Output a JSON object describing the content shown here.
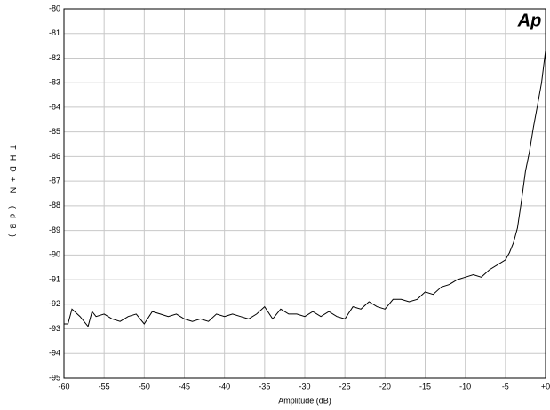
{
  "chart_data": {
    "type": "line",
    "xlabel": "Amplitude (dB)",
    "ylabel": "THD+N (dB)",
    "logo": "Ap",
    "x": [
      -60,
      -59.5,
      -59,
      -58,
      -57,
      -56.5,
      -56,
      -55,
      -54,
      -53,
      -52,
      -51,
      -50,
      -49,
      -48,
      -47,
      -46,
      -45,
      -44,
      -43,
      -42,
      -41,
      -40,
      -39,
      -38,
      -37,
      -36,
      -35,
      -34,
      -33,
      -32,
      -31,
      -30,
      -29,
      -28,
      -27,
      -26,
      -25,
      -24,
      -23,
      -22,
      -21,
      -20,
      -19,
      -18,
      -17,
      -16,
      -15,
      -14,
      -13,
      -12,
      -11,
      -10,
      -9,
      -8,
      -7,
      -6,
      -5,
      -4.5,
      -4,
      -3.5,
      -3,
      -2.5,
      -2,
      -1.5,
      -1,
      -0.5,
      0
    ],
    "series": [
      {
        "name": "THD+N",
        "color": "#000000",
        "values": [
          -92.8,
          -92.8,
          -92.2,
          -92.5,
          -92.9,
          -92.3,
          -92.5,
          -92.4,
          -92.6,
          -92.7,
          -92.5,
          -92.4,
          -92.8,
          -92.3,
          -92.4,
          -92.5,
          -92.4,
          -92.6,
          -92.7,
          -92.6,
          -92.7,
          -92.4,
          -92.5,
          -92.4,
          -92.5,
          -92.6,
          -92.4,
          -92.1,
          -92.6,
          -92.2,
          -92.4,
          -92.4,
          -92.5,
          -92.3,
          -92.5,
          -92.3,
          -92.5,
          -92.6,
          -92.1,
          -92.2,
          -91.9,
          -92.1,
          -92.2,
          -91.8,
          -91.8,
          -91.9,
          -91.8,
          -91.5,
          -91.6,
          -91.3,
          -91.2,
          -91.0,
          -90.9,
          -90.8,
          -90.9,
          -90.6,
          -90.4,
          -90.2,
          -89.9,
          -89.5,
          -88.9,
          -87.8,
          -86.6,
          -85.8,
          -84.8,
          -83.9,
          -83.0,
          -81.7
        ]
      }
    ],
    "xlim": [
      -60,
      0
    ],
    "xticks": [
      -60,
      -55,
      -50,
      -45,
      -40,
      -35,
      -30,
      -25,
      -20,
      -15,
      -10,
      -5,
      {
        "value": 0,
        "label": "+0"
      }
    ],
    "ylim": [
      -95,
      -80
    ],
    "yticks": [
      -95,
      -94,
      -93,
      -92,
      -91,
      -90,
      -89,
      -88,
      -87,
      -86,
      -85,
      -84,
      -83,
      -82,
      -81,
      -80
    ],
    "grid": true
  }
}
